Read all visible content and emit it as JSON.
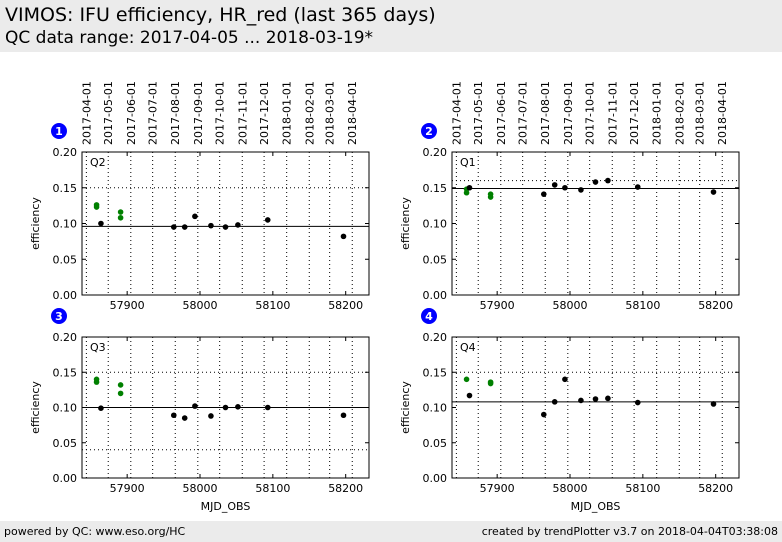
{
  "header": {
    "title": "VIMOS: IFU efficiency, HR_red (last 365 days)",
    "subtitle": "QC data range: 2017-04-05 ... 2018-03-19*"
  },
  "footer": {
    "left": "powered by QC: www.eso.org/HC",
    "right": "created by trendPlotter v3.7 on 2018-04-04T03:38:08"
  },
  "colors": {
    "current": "#000000",
    "older": "#008000",
    "marker": "#0000ff"
  },
  "chart_data": {
    "type": "scatter",
    "x_ticks": [
      57900,
      58000,
      58100,
      58200
    ],
    "xlim": [
      57838,
      58232
    ],
    "ylim": [
      0.0,
      0.2
    ],
    "y_ticks": [
      "0.00",
      "0.05",
      "0.10",
      "0.15",
      "0.20"
    ],
    "ylabel": "efficiency",
    "xlabel": "MJD_OBS",
    "date_ticks": [
      {
        "mjd": 57844,
        "label": "2017-04-01"
      },
      {
        "mjd": 57874,
        "label": "2017-05-01"
      },
      {
        "mjd": 57905,
        "label": "2017-06-01"
      },
      {
        "mjd": 57935,
        "label": "2017-07-01"
      },
      {
        "mjd": 57966,
        "label": "2017-08-01"
      },
      {
        "mjd": 57997,
        "label": "2017-09-01"
      },
      {
        "mjd": 58027,
        "label": "2017-10-01"
      },
      {
        "mjd": 58058,
        "label": "2017-11-01"
      },
      {
        "mjd": 58088,
        "label": "2017-12-01"
      },
      {
        "mjd": 58119,
        "label": "2018-01-01"
      },
      {
        "mjd": 58150,
        "label": "2018-02-01"
      },
      {
        "mjd": 58178,
        "label": "2018-03-01"
      },
      {
        "mjd": 58209,
        "label": "2018-04-01"
      }
    ],
    "panels": [
      {
        "number": "1",
        "label": "Q2",
        "reference": 0.096,
        "dotted": [
          0.15
        ],
        "series": [
          {
            "color": "older",
            "x": [
              57858,
              57858,
              57891,
              57891
            ],
            "y": [
              0.123,
              0.126,
              0.116,
              0.108
            ]
          },
          {
            "color": "current",
            "x": [
              57864,
              57964,
              57979,
              57993,
              58015,
              58035,
              58052,
              58093,
              58197
            ],
            "y": [
              0.1,
              0.095,
              0.095,
              0.11,
              0.097,
              0.095,
              0.098,
              0.105,
              0.082
            ]
          }
        ]
      },
      {
        "number": "2",
        "label": "Q1",
        "reference": 0.149,
        "dotted": [
          0.16
        ],
        "series": [
          {
            "color": "older",
            "x": [
              57858,
              57858,
              57891,
              57891
            ],
            "y": [
              0.143,
              0.148,
              0.141,
              0.137
            ]
          },
          {
            "color": "current",
            "x": [
              57862,
              57964,
              57979,
              57993,
              58015,
              58035,
              58052,
              58093,
              58197
            ],
            "y": [
              0.15,
              0.141,
              0.154,
              0.15,
              0.147,
              0.158,
              0.16,
              0.151,
              0.144
            ]
          }
        ]
      },
      {
        "number": "3",
        "label": "Q3",
        "reference": 0.1,
        "dotted": [
          0.15,
          0.04
        ],
        "series": [
          {
            "color": "older",
            "x": [
              57858,
              57858,
              57891,
              57891
            ],
            "y": [
              0.14,
              0.136,
              0.132,
              0.12
            ]
          },
          {
            "color": "current",
            "x": [
              57864,
              57964,
              57979,
              57993,
              58015,
              58035,
              58052,
              58093,
              58197
            ],
            "y": [
              0.099,
              0.089,
              0.085,
              0.102,
              0.088,
              0.1,
              0.101,
              0.1,
              0.089
            ]
          }
        ]
      },
      {
        "number": "4",
        "label": "Q4",
        "reference": 0.108,
        "dotted": [
          0.15
        ],
        "series": [
          {
            "color": "older",
            "x": [
              57858,
              57891,
              57891
            ],
            "y": [
              0.14,
              0.136,
              0.134
            ]
          },
          {
            "color": "current",
            "x": [
              57862,
              57964,
              57979,
              57993,
              58015,
              58035,
              58052,
              58093,
              58197
            ],
            "y": [
              0.117,
              0.09,
              0.108,
              0.14,
              0.11,
              0.112,
              0.113,
              0.107,
              0.105
            ]
          }
        ]
      }
    ]
  }
}
